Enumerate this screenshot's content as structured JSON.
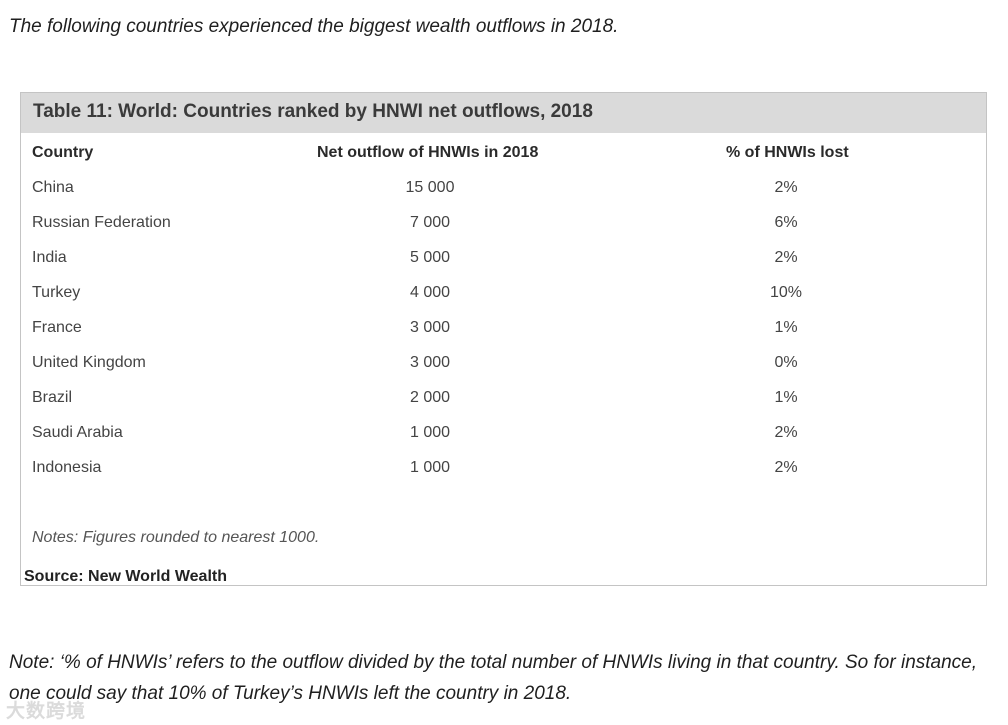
{
  "intro_text": "The following countries experienced the biggest wealth outflows in 2018.",
  "table": {
    "title": "Table 11: World: Countries ranked by HNWI net outflows, 2018",
    "columns": [
      "Country",
      "Net outflow of HNWIs in 2018",
      "% of HNWIs lost"
    ],
    "rows": [
      {
        "country": "China",
        "outflow": "15 000",
        "pct": "2%"
      },
      {
        "country": "Russian Federation",
        "outflow": "7 000",
        "pct": "6%"
      },
      {
        "country": "India",
        "outflow": "5 000",
        "pct": "2%"
      },
      {
        "country": "Turkey",
        "outflow": "4 000",
        "pct": "10%"
      },
      {
        "country": "France",
        "outflow": "3 000",
        "pct": "1%"
      },
      {
        "country": "United Kingdom",
        "outflow": "3 000",
        "pct": "0%"
      },
      {
        "country": "Brazil",
        "outflow": "2 000",
        "pct": "1%"
      },
      {
        "country": "Saudi Arabia",
        "outflow": "1 000",
        "pct": "2%"
      },
      {
        "country": "Indonesia",
        "outflow": "1 000",
        "pct": "2%"
      }
    ],
    "notes": "Notes: Figures rounded to nearest 1000.",
    "source": "Source: New World Wealth"
  },
  "footnote": "Note: ‘% of HNWIs’ refers to the outflow divided by the total number of HNWIs living in that country. So for instance, one could say that 10% of Turkey’s HNWIs left the country in 2018.",
  "watermark": "大数跨境"
}
